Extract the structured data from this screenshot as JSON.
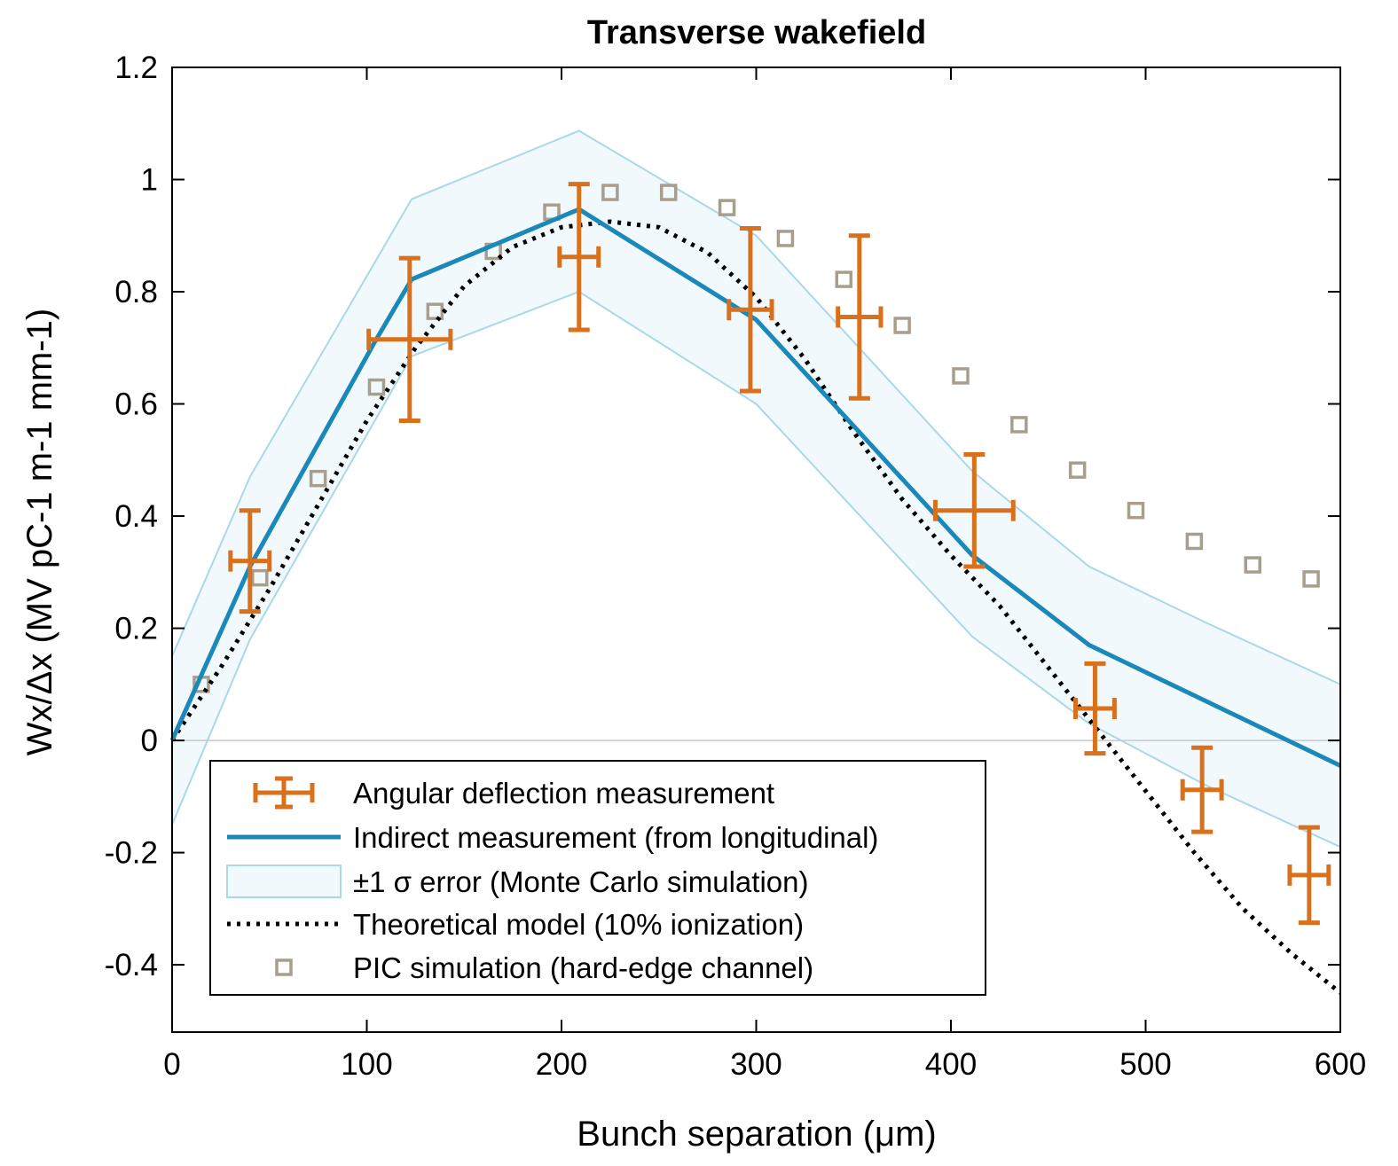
{
  "chart_data": {
    "type": "scatter",
    "title": "Transverse wakefield",
    "xlabel": "Bunch separation (μm)",
    "ylabel": "Wx/Δx (MV pC-1 m-1 mm-1)",
    "xlim": [
      0,
      600
    ],
    "ylim": [
      -0.52,
      1.2
    ],
    "x_ticks": [
      0,
      100,
      200,
      300,
      400,
      500,
      600
    ],
    "y_ticks": [
      -0.4,
      -0.2,
      0,
      0.2,
      0.4,
      0.6,
      0.8,
      1,
      1.2
    ],
    "x_tick_labels": [
      "0",
      "100",
      "200",
      "300",
      "400",
      "500",
      "600"
    ],
    "y_tick_labels": [
      "-0.4",
      "-0.2",
      "0",
      "0.2",
      "0.4",
      "0.6",
      "0.8",
      "1",
      "1.2"
    ],
    "grid": false,
    "legend_position": "bottom-left",
    "series": [
      {
        "name": "Angular deflection measurement",
        "kind": "errorbar",
        "color": "#d9711c",
        "points": [
          {
            "x": 40,
            "y": 0.32,
            "xerr": 10,
            "yerr": 0.09
          },
          {
            "x": 122,
            "y": 0.715,
            "xerr": 21,
            "yerr": 0.145
          },
          {
            "x": 209,
            "y": 0.862,
            "xerr": 10,
            "yerr": 0.13
          },
          {
            "x": 297,
            "y": 0.768,
            "xerr": 11,
            "yerr": 0.145
          },
          {
            "x": 353,
            "y": 0.755,
            "xerr": 11,
            "yerr": 0.145
          },
          {
            "x": 412,
            "y": 0.41,
            "xerr": 20,
            "yerr": 0.1
          },
          {
            "x": 474,
            "y": 0.057,
            "xerr": 10,
            "yerr": 0.08
          },
          {
            "x": 529,
            "y": -0.088,
            "xerr": 10,
            "yerr": 0.075
          },
          {
            "x": 584,
            "y": -0.24,
            "xerr": 10,
            "yerr": 0.085
          }
        ]
      },
      {
        "name": "Indirect measurement (from longitudinal)",
        "kind": "line",
        "color": "#1a88b8",
        "x": [
          0,
          40,
          104,
          123,
          209,
          300,
          411,
          471,
          531,
          600
        ],
        "y": [
          0,
          0.31,
          0.71,
          0.822,
          0.947,
          0.75,
          0.33,
          0.17,
          0.07,
          -0.045
        ]
      },
      {
        "name": "±1 σ error (Monte Carlo simulation)",
        "kind": "band",
        "color": "#a8d8ea",
        "fill": "#f2f9fd",
        "x": [
          0,
          40,
          123,
          209,
          300,
          411,
          471,
          531,
          600
        ],
        "upper": [
          0.15,
          0.47,
          0.965,
          1.087,
          0.9,
          0.48,
          0.31,
          0.21,
          0.1
        ],
        "lower": [
          -0.15,
          0.18,
          0.685,
          0.8,
          0.6,
          0.185,
          0.03,
          -0.08,
          -0.19
        ]
      },
      {
        "name": "Theoretical model (10% ionization)",
        "kind": "dotted-line",
        "color": "#000000",
        "x": [
          0,
          25,
          50,
          75,
          100,
          125,
          150,
          175,
          200,
          225,
          250,
          275,
          300,
          325,
          350,
          375,
          400,
          425,
          450,
          475,
          500,
          525,
          550,
          575,
          600
        ],
        "y": [
          0.0,
          0.13,
          0.27,
          0.42,
          0.57,
          0.7,
          0.81,
          0.88,
          0.915,
          0.925,
          0.915,
          0.87,
          0.79,
          0.68,
          0.55,
          0.43,
          0.33,
          0.24,
          0.13,
          0.02,
          -0.09,
          -0.2,
          -0.3,
          -0.38,
          -0.45
        ]
      },
      {
        "name": "PIC simulation (hard-edge channel)",
        "kind": "scatter",
        "marker": "square",
        "color": "#a89e8e",
        "x": [
          15,
          45,
          75,
          105,
          135,
          165,
          195,
          225,
          255,
          285,
          315,
          345,
          375,
          405,
          435,
          465,
          495,
          525,
          555,
          585
        ],
        "y": [
          0.1,
          0.29,
          0.467,
          0.63,
          0.765,
          0.872,
          0.942,
          0.977,
          0.977,
          0.95,
          0.895,
          0.822,
          0.74,
          0.65,
          0.563,
          0.482,
          0.41,
          0.355,
          0.313,
          0.288
        ]
      }
    ]
  }
}
